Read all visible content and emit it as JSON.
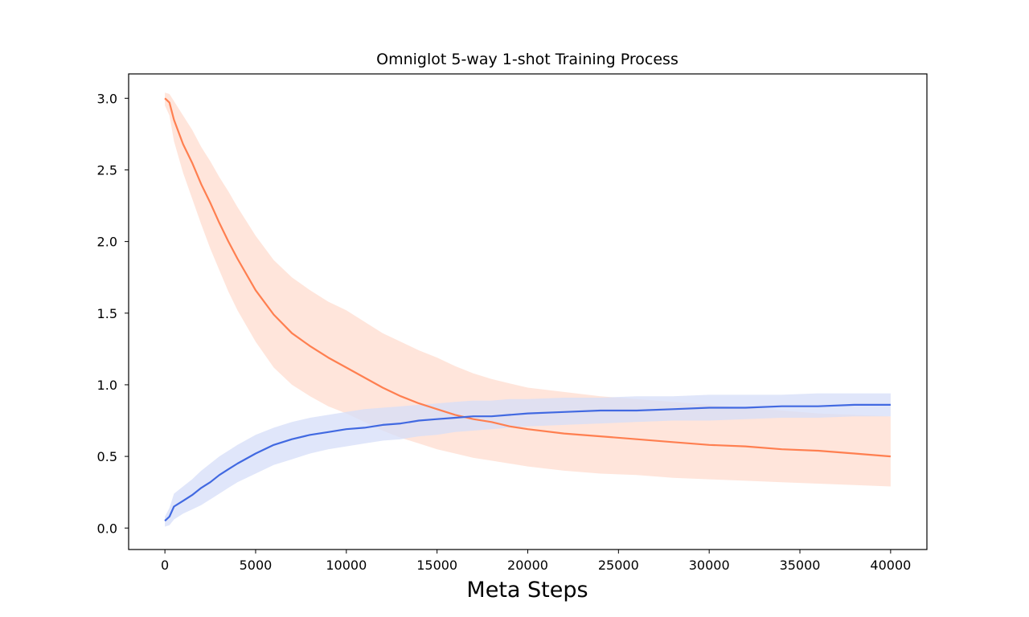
{
  "chart_data": {
    "type": "line",
    "title": "Omniglot 5-way 1-shot Training Process",
    "xlabel": "Meta Steps",
    "ylabel": "",
    "xlim": [
      -2000,
      42000
    ],
    "ylim": [
      -0.15,
      3.17
    ],
    "x_ticks": [
      0,
      5000,
      10000,
      15000,
      20000,
      25000,
      30000,
      35000,
      40000
    ],
    "x_tick_labels": [
      "0",
      "5000",
      "10000",
      "15000",
      "20000",
      "25000",
      "30000",
      "35000",
      "40000"
    ],
    "y_ticks": [
      0.0,
      0.5,
      1.0,
      1.5,
      2.0,
      2.5,
      3.0
    ],
    "y_tick_labels": [
      "0.0",
      "0.5",
      "1.0",
      "1.5",
      "2.0",
      "2.5",
      "3.0"
    ],
    "grid": false,
    "legend": "none",
    "series": [
      {
        "color": "#ff7f50",
        "band_color": "#ffdccf",
        "x": [
          0,
          250,
          500,
          1000,
          1500,
          2000,
          2500,
          3000,
          3500,
          4000,
          5000,
          6000,
          7000,
          8000,
          9000,
          10000,
          11000,
          12000,
          13000,
          14000,
          15000,
          16000,
          17000,
          18000,
          19000,
          20000,
          22000,
          24000,
          26000,
          28000,
          30000,
          32000,
          34000,
          36000,
          38000,
          40000
        ],
        "y": [
          3.0,
          2.97,
          2.85,
          2.68,
          2.55,
          2.4,
          2.27,
          2.13,
          2.0,
          1.88,
          1.66,
          1.49,
          1.36,
          1.27,
          1.19,
          1.12,
          1.05,
          0.98,
          0.92,
          0.87,
          0.83,
          0.79,
          0.76,
          0.74,
          0.71,
          0.69,
          0.66,
          0.64,
          0.62,
          0.6,
          0.58,
          0.57,
          0.55,
          0.54,
          0.52,
          0.5
        ],
        "lower": [
          2.95,
          2.88,
          2.7,
          2.48,
          2.3,
          2.12,
          1.95,
          1.8,
          1.65,
          1.52,
          1.3,
          1.12,
          1.0,
          0.92,
          0.85,
          0.8,
          0.74,
          0.68,
          0.63,
          0.59,
          0.55,
          0.52,
          0.49,
          0.47,
          0.45,
          0.43,
          0.4,
          0.38,
          0.37,
          0.35,
          0.34,
          0.33,
          0.32,
          0.31,
          0.3,
          0.29
        ],
        "upper": [
          3.04,
          3.03,
          2.98,
          2.88,
          2.78,
          2.66,
          2.56,
          2.45,
          2.35,
          2.24,
          2.04,
          1.87,
          1.75,
          1.66,
          1.58,
          1.52,
          1.44,
          1.36,
          1.3,
          1.24,
          1.19,
          1.13,
          1.08,
          1.04,
          1.01,
          0.98,
          0.95,
          0.92,
          0.9,
          0.88,
          0.86,
          0.84,
          0.82,
          0.8,
          0.79,
          0.78
        ]
      },
      {
        "color": "#4169e1",
        "band_color": "#d6def8",
        "x": [
          0,
          250,
          500,
          1000,
          1500,
          2000,
          2500,
          3000,
          3500,
          4000,
          5000,
          6000,
          7000,
          8000,
          9000,
          10000,
          11000,
          12000,
          13000,
          14000,
          15000,
          16000,
          17000,
          18000,
          19000,
          20000,
          22000,
          24000,
          26000,
          28000,
          30000,
          32000,
          34000,
          36000,
          38000,
          40000
        ],
        "y": [
          0.05,
          0.08,
          0.15,
          0.19,
          0.23,
          0.28,
          0.32,
          0.37,
          0.41,
          0.45,
          0.52,
          0.58,
          0.62,
          0.65,
          0.67,
          0.69,
          0.7,
          0.72,
          0.73,
          0.75,
          0.76,
          0.77,
          0.78,
          0.78,
          0.79,
          0.8,
          0.81,
          0.82,
          0.82,
          0.83,
          0.84,
          0.84,
          0.85,
          0.85,
          0.86,
          0.86
        ],
        "lower": [
          0.01,
          0.02,
          0.06,
          0.1,
          0.13,
          0.16,
          0.2,
          0.24,
          0.28,
          0.32,
          0.38,
          0.44,
          0.48,
          0.52,
          0.55,
          0.57,
          0.59,
          0.61,
          0.62,
          0.64,
          0.65,
          0.67,
          0.68,
          0.69,
          0.7,
          0.71,
          0.72,
          0.73,
          0.74,
          0.75,
          0.75,
          0.76,
          0.77,
          0.77,
          0.78,
          0.78
        ],
        "upper": [
          0.08,
          0.14,
          0.24,
          0.29,
          0.34,
          0.4,
          0.45,
          0.5,
          0.54,
          0.58,
          0.65,
          0.7,
          0.74,
          0.77,
          0.79,
          0.81,
          0.83,
          0.84,
          0.85,
          0.86,
          0.87,
          0.88,
          0.89,
          0.89,
          0.9,
          0.9,
          0.91,
          0.91,
          0.92,
          0.92,
          0.93,
          0.93,
          0.93,
          0.94,
          0.94,
          0.94
        ]
      }
    ]
  }
}
